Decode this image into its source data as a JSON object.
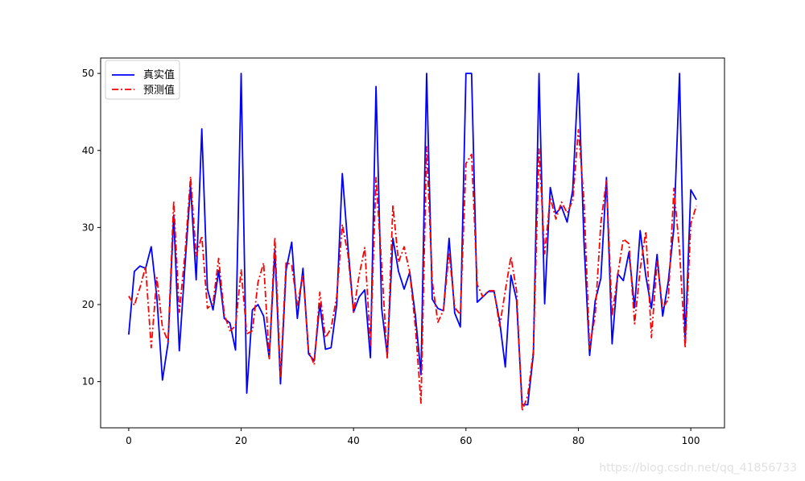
{
  "chart_data": {
    "type": "line",
    "title": "",
    "xlabel": "",
    "ylabel": "",
    "xlim": [
      -5,
      106
    ],
    "ylim": [
      4,
      52
    ],
    "xticks": [
      0,
      20,
      40,
      60,
      80,
      100
    ],
    "yticks": [
      10,
      20,
      30,
      40,
      50
    ],
    "grid": false,
    "legend_position": "top-left",
    "series": [
      {
        "name": "真实值",
        "color": "#0000ff",
        "linestyle": "solid",
        "values": [
          16.1,
          24.3,
          25.0,
          24.7,
          27.5,
          21.0,
          10.2,
          15.0,
          31.6,
          14.0,
          25.0,
          35.4,
          23.2,
          42.8,
          22.0,
          19.3,
          24.4,
          18.2,
          17.6,
          14.1,
          50.0,
          8.5,
          19.3,
          20.0,
          18.5,
          13.0,
          27.1,
          9.7,
          24.5,
          28.1,
          18.2,
          24.7,
          13.6,
          12.7,
          20.1,
          14.2,
          14.4,
          19.9,
          37.0,
          27.5,
          19.0,
          21.0,
          21.9,
          13.1,
          48.3,
          19.5,
          13.4,
          28.6,
          24.3,
          22.0,
          24.2,
          18.6,
          10.9,
          50.0,
          20.7,
          19.5,
          19.2,
          28.6,
          18.9,
          17.1,
          50.0,
          50.0,
          20.3,
          21.0,
          21.7,
          21.7,
          17.8,
          11.9,
          23.8,
          20.6,
          7.0,
          7.0,
          13.6,
          50.0,
          20.1,
          35.2,
          31.8,
          32.7,
          30.7,
          34.9,
          50.0,
          28.1,
          13.4,
          20.5,
          23.4,
          36.5,
          14.9,
          24.0,
          23.1,
          26.8,
          19.6,
          29.6,
          23.7,
          19.5,
          26.5,
          18.5,
          23.0,
          30.0,
          50.0,
          15.0,
          34.9,
          33.6
        ]
      },
      {
        "name": "预测值",
        "color": "#ff0000",
        "linestyle": "dashdot",
        "values": [
          21.1,
          19.9,
          22.2,
          24.9,
          14.4,
          23.5,
          17.0,
          15.2,
          33.4,
          19.0,
          26.5,
          36.6,
          26.3,
          28.9,
          19.5,
          20.2,
          26.0,
          18.7,
          16.6,
          17.2,
          24.5,
          16.2,
          16.6,
          22.9,
          25.4,
          13.0,
          28.7,
          10.5,
          25.5,
          25.1,
          19.9,
          23.9,
          14.0,
          12.2,
          21.6,
          15.7,
          16.9,
          21.0,
          30.4,
          26.5,
          19.0,
          23.8,
          27.4,
          14.7,
          36.5,
          25.1,
          12.9,
          32.9,
          25.5,
          27.5,
          24.2,
          17.1,
          7.2,
          40.5,
          23.0,
          17.7,
          19.3,
          26.8,
          19.6,
          18.7,
          38.3,
          39.5,
          22.6,
          21.0,
          21.8,
          21.8,
          17.2,
          21.8,
          26.2,
          21.8,
          6.2,
          8.2,
          14.0,
          40.2,
          26.6,
          33.9,
          31.1,
          33.3,
          31.9,
          33.5,
          42.7,
          33.5,
          14.3,
          18.7,
          30.6,
          36.1,
          18.5,
          23.9,
          28.5,
          27.9,
          17.5,
          24.6,
          29.5,
          15.7,
          25.6,
          19.5,
          20.7,
          35.1,
          27.0,
          14.4,
          30.5,
          32.8
        ]
      }
    ]
  },
  "legend": {
    "items": [
      {
        "label": "真实值",
        "color": "#0000ff"
      },
      {
        "label": "预测值",
        "color": "#ff0000"
      }
    ]
  },
  "watermark": "https://blog.csdn.net/qq_41856733"
}
